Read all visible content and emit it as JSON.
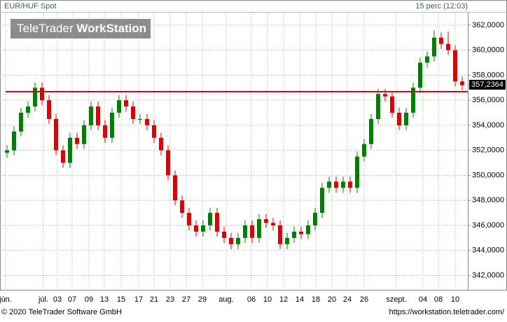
{
  "chart_data": {
    "type": "candlestick",
    "title": "EUR/HUF Spot",
    "subtitle": "15 perc (12:03)",
    "watermark": [
      "TeleTrader",
      "WorkStation"
    ],
    "footer_left": "© 2020 TeleTrader Software GmbH",
    "footer_right": "https://workstation.teletrader.com/",
    "x": [
      1,
      2,
      3,
      4,
      5,
      6,
      7,
      8,
      9,
      10,
      11,
      12,
      13,
      14,
      15,
      16,
      17,
      18,
      19,
      20,
      21,
      22,
      23,
      24,
      25,
      26,
      27,
      28,
      29,
      30,
      31,
      32,
      33,
      34,
      35,
      36,
      37,
      38,
      39,
      40,
      41,
      42,
      43,
      44,
      45,
      46,
      47,
      48,
      49,
      50,
      51,
      52,
      53,
      54,
      55,
      56,
      57,
      58,
      59,
      60,
      61,
      62,
      63,
      64,
      65,
      66
    ],
    "open": [
      351.8,
      352,
      353.5,
      355,
      355.5,
      357,
      356,
      354.5,
      352,
      351,
      353,
      352.5,
      354,
      355.5,
      354,
      353,
      355,
      356,
      355.5,
      354.5,
      354.5,
      354,
      353,
      352,
      350,
      348,
      347,
      346,
      345.5,
      346,
      347,
      345.5,
      345,
      344.5,
      345,
      346,
      345,
      346.5,
      346.2,
      346,
      344.5,
      345,
      345.5,
      345.3,
      346,
      347,
      349,
      349.5,
      349,
      349.5,
      349,
      351.5,
      352.5,
      354.5,
      356.5,
      356.3,
      355,
      354,
      355,
      357,
      359,
      359.5,
      361,
      360.5,
      360,
      357.5
    ],
    "high": [
      352.4,
      353.9,
      355.4,
      355.9,
      357.4,
      357.4,
      356.4,
      354.9,
      352.4,
      353.4,
      353.4,
      354.4,
      355.9,
      355.9,
      354.4,
      355.4,
      356.4,
      356.4,
      355.9,
      354.9,
      354.9,
      354.4,
      353.4,
      352.4,
      350.4,
      348.4,
      347.4,
      346.4,
      346.4,
      347.4,
      347.4,
      345.9,
      345.4,
      345.4,
      346.4,
      346.4,
      346.9,
      346.9,
      346.6,
      346.4,
      345.4,
      345.9,
      345.9,
      346.4,
      347.4,
      349.4,
      349.9,
      349.9,
      349.9,
      349.9,
      351.9,
      352.9,
      354.9,
      356.9,
      356.9,
      356.7,
      355.4,
      355.4,
      357.4,
      359.4,
      359.9,
      361.6,
      361.4,
      361.5,
      360.4,
      357.9
    ],
    "low": [
      351.4,
      351.6,
      353.1,
      354.6,
      355.1,
      355.6,
      354.1,
      351.6,
      350.6,
      350.6,
      352.1,
      352.1,
      353.6,
      353.6,
      352.6,
      352.6,
      354.6,
      355.1,
      354.1,
      354.1,
      353.6,
      352.6,
      351.6,
      349.6,
      347.6,
      346.6,
      345.6,
      345.1,
      345.1,
      345.6,
      345.1,
      344.6,
      344.1,
      344.1,
      344.6,
      344.6,
      344.6,
      345.8,
      345.6,
      344.1,
      344.1,
      344.6,
      344.9,
      344.9,
      345.6,
      346.6,
      348.6,
      348.6,
      348.6,
      348.6,
      348.6,
      351.1,
      352.1,
      354.1,
      355.9,
      354.6,
      353.6,
      353.6,
      354.6,
      356.6,
      358.6,
      359.1,
      360.1,
      359.6,
      357.1,
      356.8
    ],
    "close": [
      352,
      353.5,
      355,
      355.5,
      357,
      356,
      354.5,
      352,
      351,
      353,
      352.5,
      354,
      355.5,
      354,
      353,
      355,
      356,
      355.5,
      354.5,
      354.5,
      354,
      353,
      352,
      350,
      348,
      347,
      346,
      345.5,
      346,
      347,
      345.5,
      345,
      344.5,
      345,
      346,
      345,
      346.5,
      346.2,
      346,
      344.5,
      345,
      345.5,
      345.3,
      346,
      347,
      349,
      349.5,
      349,
      349.5,
      349,
      351.5,
      352.5,
      354.5,
      356.5,
      356.3,
      355,
      354,
      355,
      357,
      359,
      359.5,
      361,
      360.5,
      360,
      357.5,
      357.2
    ],
    "up_color": "#008000",
    "down_color": "#e00000",
    "xlim": [
      0,
      66.8
    ],
    "ylim": [
      340.8,
      363.0
    ],
    "xticks": [
      {
        "value": 0.8,
        "label": "jún."
      },
      {
        "value": 6.2,
        "label": "júl."
      },
      {
        "value": 8.2,
        "label": "03"
      },
      {
        "value": 10.3,
        "label": "07"
      },
      {
        "value": 12.7,
        "label": "09"
      },
      {
        "value": 14.9,
        "label": "13"
      },
      {
        "value": 17.3,
        "label": "15"
      },
      {
        "value": 19.8,
        "label": "17"
      },
      {
        "value": 22.0,
        "label": "21"
      },
      {
        "value": 24.3,
        "label": "23"
      },
      {
        "value": 26.6,
        "label": "27"
      },
      {
        "value": 28.9,
        "label": "29"
      },
      {
        "value": 32.3,
        "label": "aug."
      },
      {
        "value": 35.9,
        "label": "06"
      },
      {
        "value": 38.2,
        "label": "10"
      },
      {
        "value": 40.5,
        "label": "12"
      },
      {
        "value": 42.8,
        "label": "14"
      },
      {
        "value": 45.1,
        "label": "18"
      },
      {
        "value": 47.4,
        "label": "20"
      },
      {
        "value": 49.6,
        "label": "24"
      },
      {
        "value": 52.0,
        "label": "26"
      },
      {
        "value": 56.6,
        "label": "szept."
      },
      {
        "value": 60.4,
        "label": "04"
      },
      {
        "value": 62.6,
        "label": "08"
      },
      {
        "value": 65.0,
        "label": "10"
      }
    ],
    "yticks": [
      {
        "value": 342,
        "label": "342,0000"
      },
      {
        "value": 344,
        "label": "344,0000"
      },
      {
        "value": 346,
        "label": "346,0000"
      },
      {
        "value": 348,
        "label": "348,0000"
      },
      {
        "value": 350,
        "label": "350,0000"
      },
      {
        "value": 352,
        "label": "352,0000"
      },
      {
        "value": 354,
        "label": "354,0000"
      },
      {
        "value": 356,
        "label": "356,0000"
      },
      {
        "value": 358,
        "label": "358,0000"
      },
      {
        "value": 360,
        "label": "360,0000"
      },
      {
        "value": 362,
        "label": "362,0000"
      }
    ],
    "grid": true,
    "reference_line": {
      "value": 356.68,
      "color": "#e00000"
    },
    "last_price": {
      "value": 357.2364,
      "label": "357,2364"
    }
  }
}
